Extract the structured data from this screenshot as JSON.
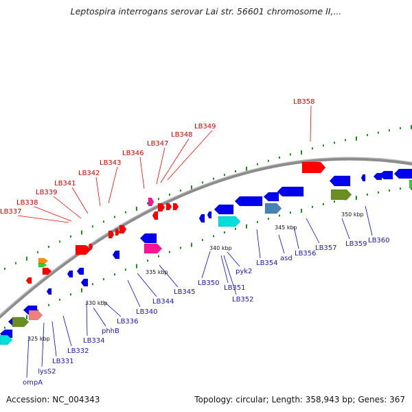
{
  "title": "Leptospira interrogans serovar Lai str. 56601 chromosome II,...",
  "accession": "Accession: NC_004343",
  "summary": "Topology: circular; Length: 358,943 bp; Genes: 367",
  "colors": {
    "backbone": "#8c8c8c",
    "forward_gene": "#ff0000",
    "reverse_gene": "#0000ee",
    "forward_label": "#cc0000",
    "reverse_label": "#1a1aaa",
    "gc_dots": "#228b22"
  },
  "ticks": [
    "325 kbp",
    "330 kbp",
    "335 kbp",
    "340 kbp",
    "345 kbp",
    "350 kbp"
  ],
  "forward_labels": [
    "LB337",
    "LB338",
    "LB339",
    "LB341",
    "LB342",
    "LB343",
    "LB346",
    "LB347",
    "LB348",
    "LB349",
    "LB358"
  ],
  "reverse_labels": [
    "ompA",
    "lysS2",
    "LB331",
    "LB332",
    "LB334",
    "phhB",
    "LB336",
    "LB340",
    "LB344",
    "LB345",
    "LB350",
    "LB351",
    "LB352",
    "pyk2",
    "LB354",
    "asd",
    "LB356",
    "LB357",
    "LB359",
    "LB360"
  ]
}
